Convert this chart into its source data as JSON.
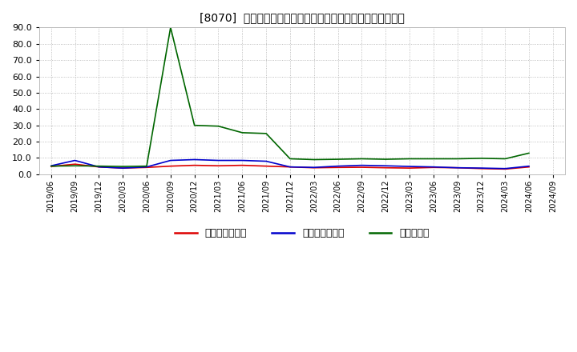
{
  "title": "[8070]  売上債権回転率、買入債務回転率、在庫回転率の推移",
  "ylim": [
    0.0,
    90.0
  ],
  "yticks": [
    0.0,
    10.0,
    20.0,
    30.0,
    40.0,
    50.0,
    60.0,
    70.0,
    80.0,
    90.0
  ],
  "background_color": "#ffffff",
  "grid_color": "#aaaaaa",
  "legend": [
    {
      "label": "売上債権回転率",
      "color": "#dd0000"
    },
    {
      "label": "買入債務回転率",
      "color": "#0000cc"
    },
    {
      "label": "在庫回転率",
      "color": "#006600"
    }
  ],
  "dates": [
    "2019/06",
    "2019/09",
    "2019/12",
    "2020/03",
    "2020/06",
    "2020/09",
    "2020/12",
    "2021/03",
    "2021/06",
    "2021/09",
    "2021/12",
    "2022/03",
    "2022/06",
    "2022/09",
    "2022/12",
    "2023/03",
    "2023/06",
    "2023/09",
    "2023/12",
    "2024/03",
    "2024/06",
    "2024/09"
  ],
  "series": {
    "売上債権回転率": [
      4.8,
      6.2,
      4.5,
      3.8,
      4.2,
      5.0,
      5.5,
      5.2,
      5.5,
      5.0,
      4.5,
      4.0,
      4.2,
      4.3,
      4.0,
      3.8,
      4.2,
      4.0,
      3.5,
      3.2,
      4.5,
      null
    ],
    "買入債務回転率": [
      5.2,
      8.5,
      4.5,
      3.8,
      4.5,
      8.5,
      9.0,
      8.5,
      8.5,
      8.0,
      4.5,
      4.2,
      5.0,
      5.5,
      5.2,
      4.8,
      4.5,
      4.0,
      3.8,
      3.5,
      5.0,
      null
    ],
    "在庫回転率": [
      5.0,
      5.2,
      5.0,
      4.8,
      5.0,
      90.0,
      30.0,
      29.5,
      25.5,
      25.0,
      9.5,
      9.0,
      9.2,
      9.5,
      9.2,
      9.5,
      9.5,
      9.5,
      9.8,
      9.5,
      13.0,
      null
    ]
  }
}
